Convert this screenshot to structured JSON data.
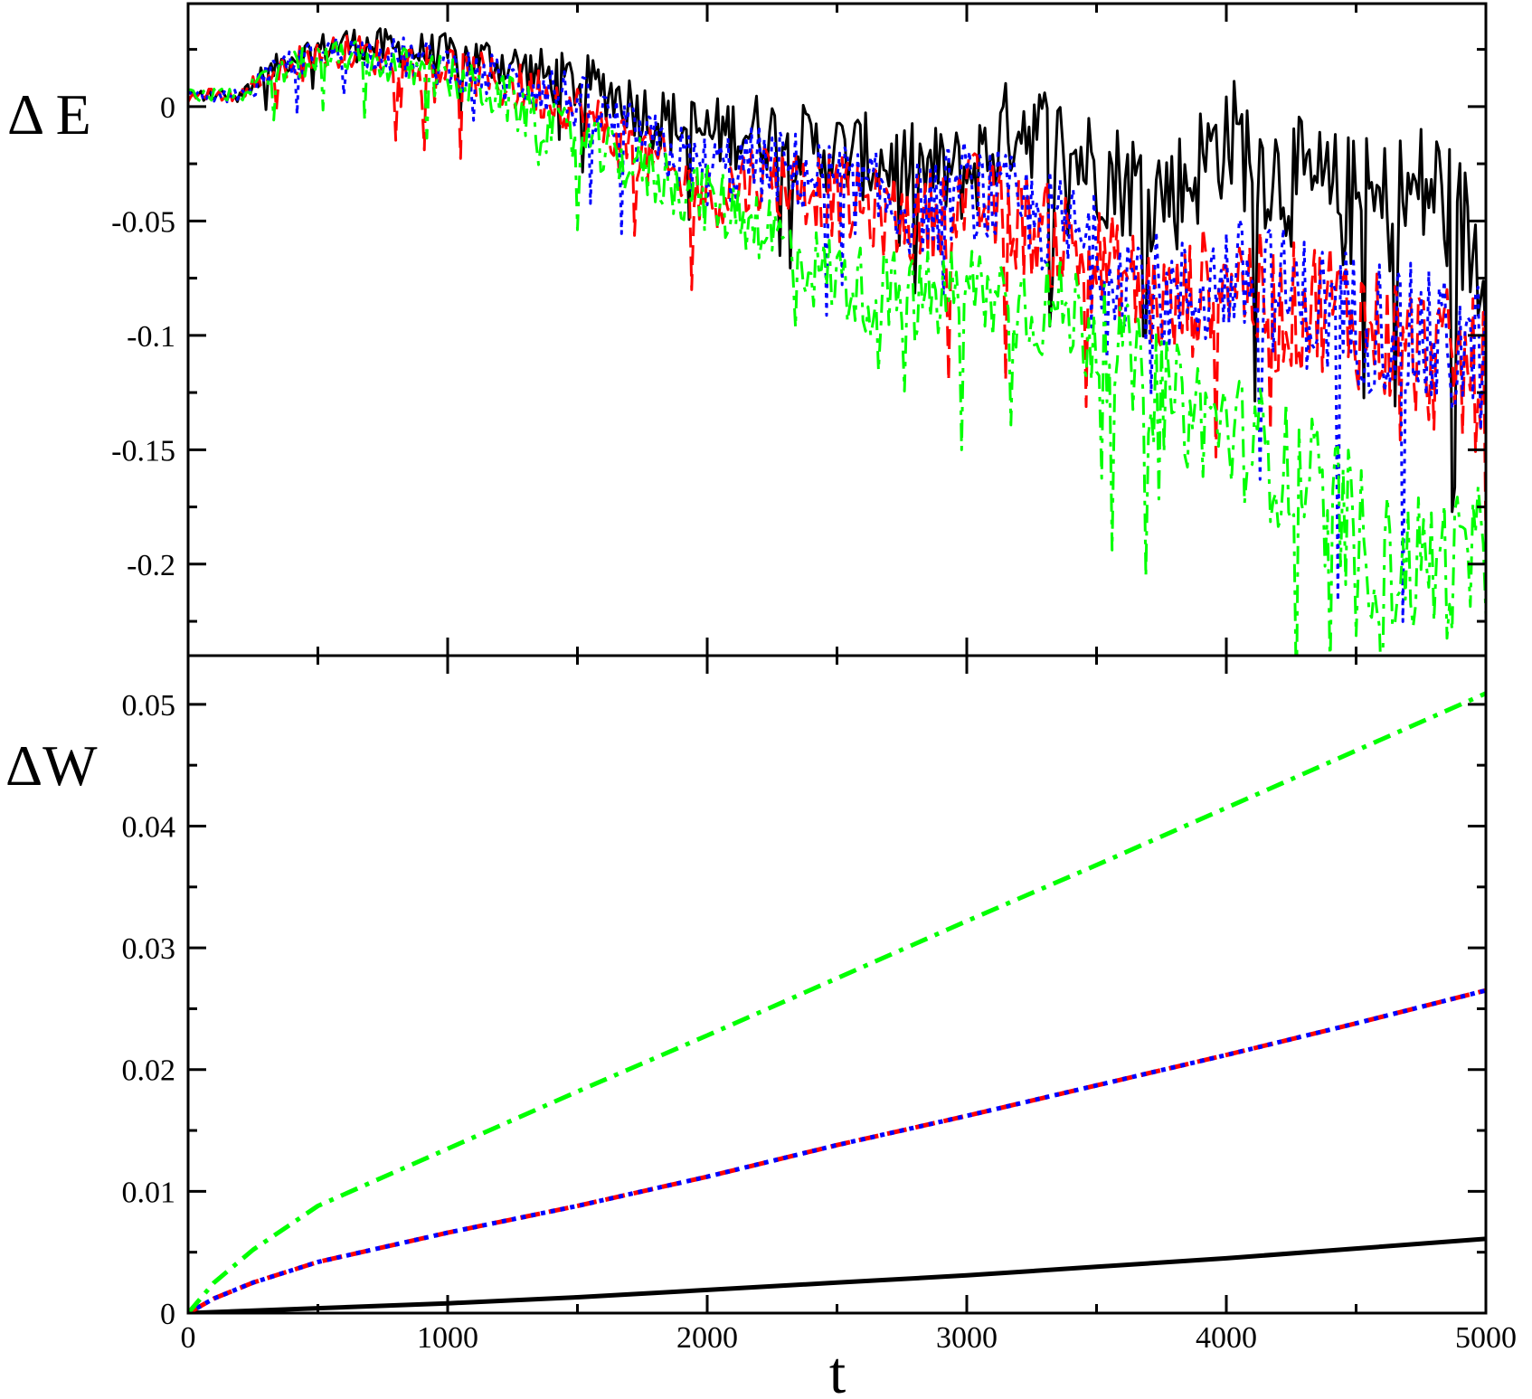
{
  "chart_data": [
    {
      "type": "line",
      "panel": "top",
      "ylabel": "Δ E",
      "xlabel": "",
      "xlim": [
        0,
        5000
      ],
      "ylim": [
        -0.24,
        0.045
      ],
      "yticks": [
        0,
        -0.05,
        -0.1,
        -0.15,
        -0.2
      ],
      "ytick_labels": [
        "0",
        "-0.05",
        "-0.1",
        "-0.15",
        "-0.2"
      ],
      "grid": false,
      "series": [
        {
          "name": "black-solid",
          "color": "#000000",
          "dash": "solid",
          "x": [
            0,
            200,
            400,
            600,
            800,
            1000,
            1200,
            1400,
            1600,
            1800,
            2000,
            2200,
            2400,
            2600,
            2800,
            3000,
            3200,
            3400,
            3600,
            3800,
            4000,
            4200,
            4400,
            4600,
            4800,
            5000
          ],
          "y": [
            0.005,
            0.005,
            0.022,
            0.028,
            0.025,
            0.022,
            0.02,
            0.012,
            0.008,
            -0.005,
            -0.012,
            -0.01,
            -0.018,
            -0.022,
            -0.028,
            -0.03,
            -0.005,
            -0.02,
            -0.032,
            -0.038,
            -0.012,
            -0.03,
            -0.04,
            -0.045,
            -0.035,
            -0.07
          ]
        },
        {
          "name": "red-dashed",
          "color": "#ff0000",
          "dash": "long-dash",
          "x": [
            0,
            200,
            400,
            600,
            800,
            1000,
            1200,
            1400,
            1600,
            1800,
            2000,
            2200,
            2400,
            2600,
            2800,
            3000,
            3200,
            3400,
            3600,
            3800,
            4000,
            4200,
            4400,
            4600,
            4800,
            5000
          ],
          "y": [
            0.005,
            0.005,
            0.02,
            0.025,
            0.02,
            0.018,
            0.01,
            0.005,
            -0.01,
            -0.025,
            -0.04,
            -0.03,
            -0.035,
            -0.045,
            -0.05,
            -0.04,
            -0.05,
            -0.06,
            -0.075,
            -0.09,
            -0.07,
            -0.09,
            -0.085,
            -0.1,
            -0.11,
            -0.12
          ]
        },
        {
          "name": "blue-dotted",
          "color": "#0000ff",
          "dash": "dotted",
          "x": [
            0,
            200,
            400,
            600,
            800,
            1000,
            1200,
            1400,
            1600,
            1800,
            2000,
            2200,
            2400,
            2600,
            2800,
            3000,
            3200,
            3400,
            3600,
            3800,
            4000,
            4200,
            4400,
            4600,
            4800,
            5000
          ],
          "y": [
            0.005,
            0.005,
            0.02,
            0.025,
            0.022,
            0.018,
            0.012,
            0.008,
            -0.005,
            -0.018,
            -0.028,
            -0.025,
            -0.03,
            -0.038,
            -0.045,
            -0.035,
            -0.045,
            -0.055,
            -0.07,
            -0.085,
            -0.075,
            -0.08,
            -0.09,
            -0.095,
            -0.105,
            -0.11
          ]
        },
        {
          "name": "green-dashdot",
          "color": "#00ff00",
          "dash": "dash-dot",
          "x": [
            0,
            200,
            400,
            600,
            800,
            1000,
            1200,
            1400,
            1600,
            1800,
            2000,
            2200,
            2400,
            2600,
            2800,
            3000,
            3200,
            3400,
            3600,
            3800,
            4000,
            4200,
            4400,
            4600,
            4800,
            5000
          ],
          "y": [
            0.005,
            0.005,
            0.018,
            0.022,
            0.018,
            0.012,
            0.005,
            -0.01,
            -0.02,
            -0.03,
            -0.04,
            -0.05,
            -0.07,
            -0.08,
            -0.085,
            -0.08,
            -0.085,
            -0.09,
            -0.11,
            -0.13,
            -0.14,
            -0.155,
            -0.17,
            -0.2,
            -0.2,
            -0.2
          ]
        }
      ]
    },
    {
      "type": "line",
      "panel": "bottom",
      "ylabel": "ΔW",
      "xlabel": "t",
      "xlim": [
        0,
        5000
      ],
      "ylim": [
        0,
        0.054
      ],
      "xticks": [
        0,
        1000,
        2000,
        3000,
        4000,
        5000
      ],
      "xtick_labels": [
        "0",
        "1000",
        "2000",
        "3000",
        "4000",
        "5000"
      ],
      "yticks": [
        0,
        0.01,
        0.02,
        0.03,
        0.04,
        0.05
      ],
      "ytick_labels": [
        "0",
        "0.01",
        "0.02",
        "0.03",
        "0.04",
        "0.05"
      ],
      "grid": false,
      "series": [
        {
          "name": "black-solid",
          "color": "#000000",
          "dash": "solid",
          "x": [
            0,
            500,
            1000,
            1500,
            2000,
            2500,
            3000,
            3500,
            4000,
            4500,
            5000
          ],
          "y": [
            0,
            0.0004,
            0.0008,
            0.0013,
            0.0019,
            0.0025,
            0.0031,
            0.0038,
            0.0045,
            0.0053,
            0.0061
          ]
        },
        {
          "name": "red-dashed",
          "color": "#ff0000",
          "dash": "long-dash",
          "x": [
            0,
            100,
            250,
            500,
            1000,
            1500,
            2000,
            2500,
            3000,
            3500,
            4000,
            4500,
            5000
          ],
          "y": [
            0,
            0.0012,
            0.0025,
            0.0042,
            0.0066,
            0.0088,
            0.0112,
            0.0138,
            0.0162,
            0.0187,
            0.0212,
            0.0238,
            0.0265
          ]
        },
        {
          "name": "blue-dotted",
          "color": "#0000ff",
          "dash": "dotted",
          "x": [
            0,
            100,
            250,
            500,
            1000,
            1500,
            2000,
            2500,
            3000,
            3500,
            4000,
            4500,
            5000
          ],
          "y": [
            0,
            0.0012,
            0.0025,
            0.0042,
            0.0066,
            0.0088,
            0.0112,
            0.0138,
            0.0162,
            0.0187,
            0.0212,
            0.0238,
            0.0265
          ]
        },
        {
          "name": "green-dashdot",
          "color": "#00ff00",
          "dash": "dash-dot",
          "x": [
            0,
            100,
            250,
            500,
            1000,
            1500,
            2000,
            2500,
            3000,
            3500,
            4000,
            4500,
            5000
          ],
          "y": [
            0,
            0.0025,
            0.0052,
            0.0088,
            0.0135,
            0.0182,
            0.0228,
            0.0275,
            0.0322,
            0.0368,
            0.0415,
            0.0462,
            0.0509
          ]
        }
      ]
    }
  ]
}
